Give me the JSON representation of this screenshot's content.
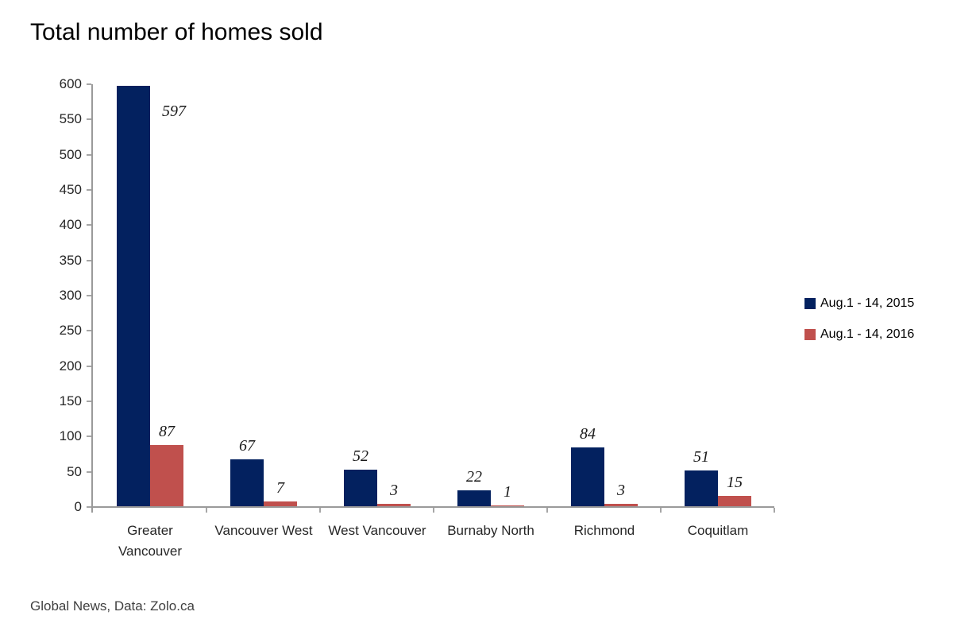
{
  "page": {
    "title": "Total number of homes sold",
    "footer": "Global News, Data: Zolo.ca"
  },
  "colors": {
    "series_2015": "#03215F",
    "series_2016": "#C0504D",
    "axis_line": "#9A9A9A",
    "tick_mark": "#A6A6A6",
    "tick_label_text": "#262626",
    "data_label_text": "#1A1A1A",
    "background": "#FFFFFF"
  },
  "chart_data": {
    "type": "bar",
    "title": "Total number of homes sold",
    "xlabel": "",
    "ylabel": "",
    "categories": [
      "Greater Vancouver",
      "Vancouver West",
      "West Vancouver",
      "Burnaby North",
      "Richmond",
      "Coquitlam"
    ],
    "series": [
      {
        "name": "Aug.1 - 14, 2015",
        "color": "#03215F",
        "values": [
          597,
          67,
          52,
          22,
          84,
          51
        ]
      },
      {
        "name": "Aug.1 - 14, 2016",
        "color": "#C0504D",
        "values": [
          87,
          7,
          3,
          1,
          3,
          15
        ]
      }
    ],
    "ylim": [
      0,
      600
    ],
    "yticks": [
      0,
      50,
      100,
      150,
      200,
      250,
      300,
      350,
      400,
      450,
      500,
      550,
      600
    ],
    "grid": false,
    "legend_position": "right-middle",
    "data_labels_shown": true,
    "source_note": "Global News, Data: Zolo.ca"
  }
}
